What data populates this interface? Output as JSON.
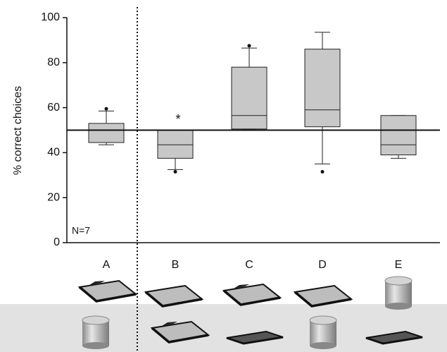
{
  "chart_data": {
    "type": "box",
    "ylabel": "% correct choices",
    "categories": [
      "A",
      "B",
      "C",
      "D",
      "E"
    ],
    "boxes": [
      {
        "whislo": 43.5,
        "q1": 44.5,
        "med": 50,
        "q3": 53,
        "whishi": 58.5,
        "fliers": [
          59.5
        ]
      },
      {
        "whislo": 32.5,
        "q1": 37.5,
        "med": 43.5,
        "q3": 50,
        "whishi": 50,
        "fliers": [
          31.5
        ]
      },
      {
        "whislo": 50.5,
        "q1": 50.5,
        "med": 56.5,
        "q3": 78,
        "whishi": 86.5,
        "fliers": [
          87.5
        ]
      },
      {
        "whislo": 35,
        "q1": 51.5,
        "med": 59,
        "q3": 86,
        "whishi": 93.5,
        "fliers": [
          31.5
        ]
      },
      {
        "whislo": 37.5,
        "q1": 39,
        "med": 43.5,
        "q3": 56.5,
        "whishi": 56.5,
        "fliers": []
      }
    ],
    "color": "#c8c8c8",
    "hline": 50,
    "annotations": [
      "N=7",
      "*"
    ],
    "ylim": [
      0,
      100
    ],
    "yticks": [
      0,
      20,
      40,
      60,
      80,
      100
    ]
  }
}
